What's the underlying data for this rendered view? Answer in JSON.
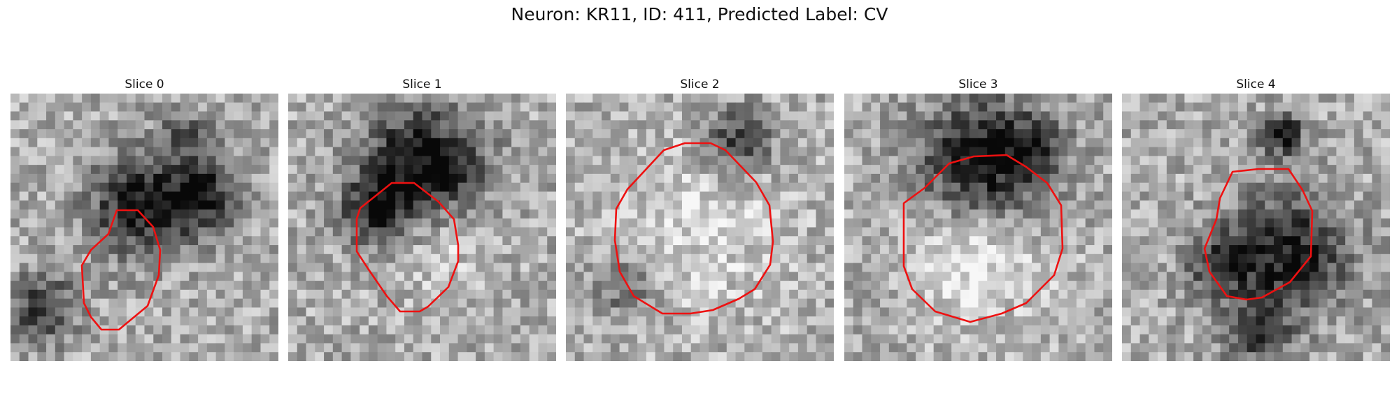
{
  "figure": {
    "title": "Neuron: KR11, ID: 411, Predicted Label: CV"
  },
  "panels": [
    {
      "title": "Slice 0"
    },
    {
      "title": "Slice 1"
    },
    {
      "title": "Slice 2"
    },
    {
      "title": "Slice 3"
    },
    {
      "title": "Slice 4"
    }
  ],
  "colors": {
    "contour": "#ee1111",
    "colormap": "grayscale"
  }
}
